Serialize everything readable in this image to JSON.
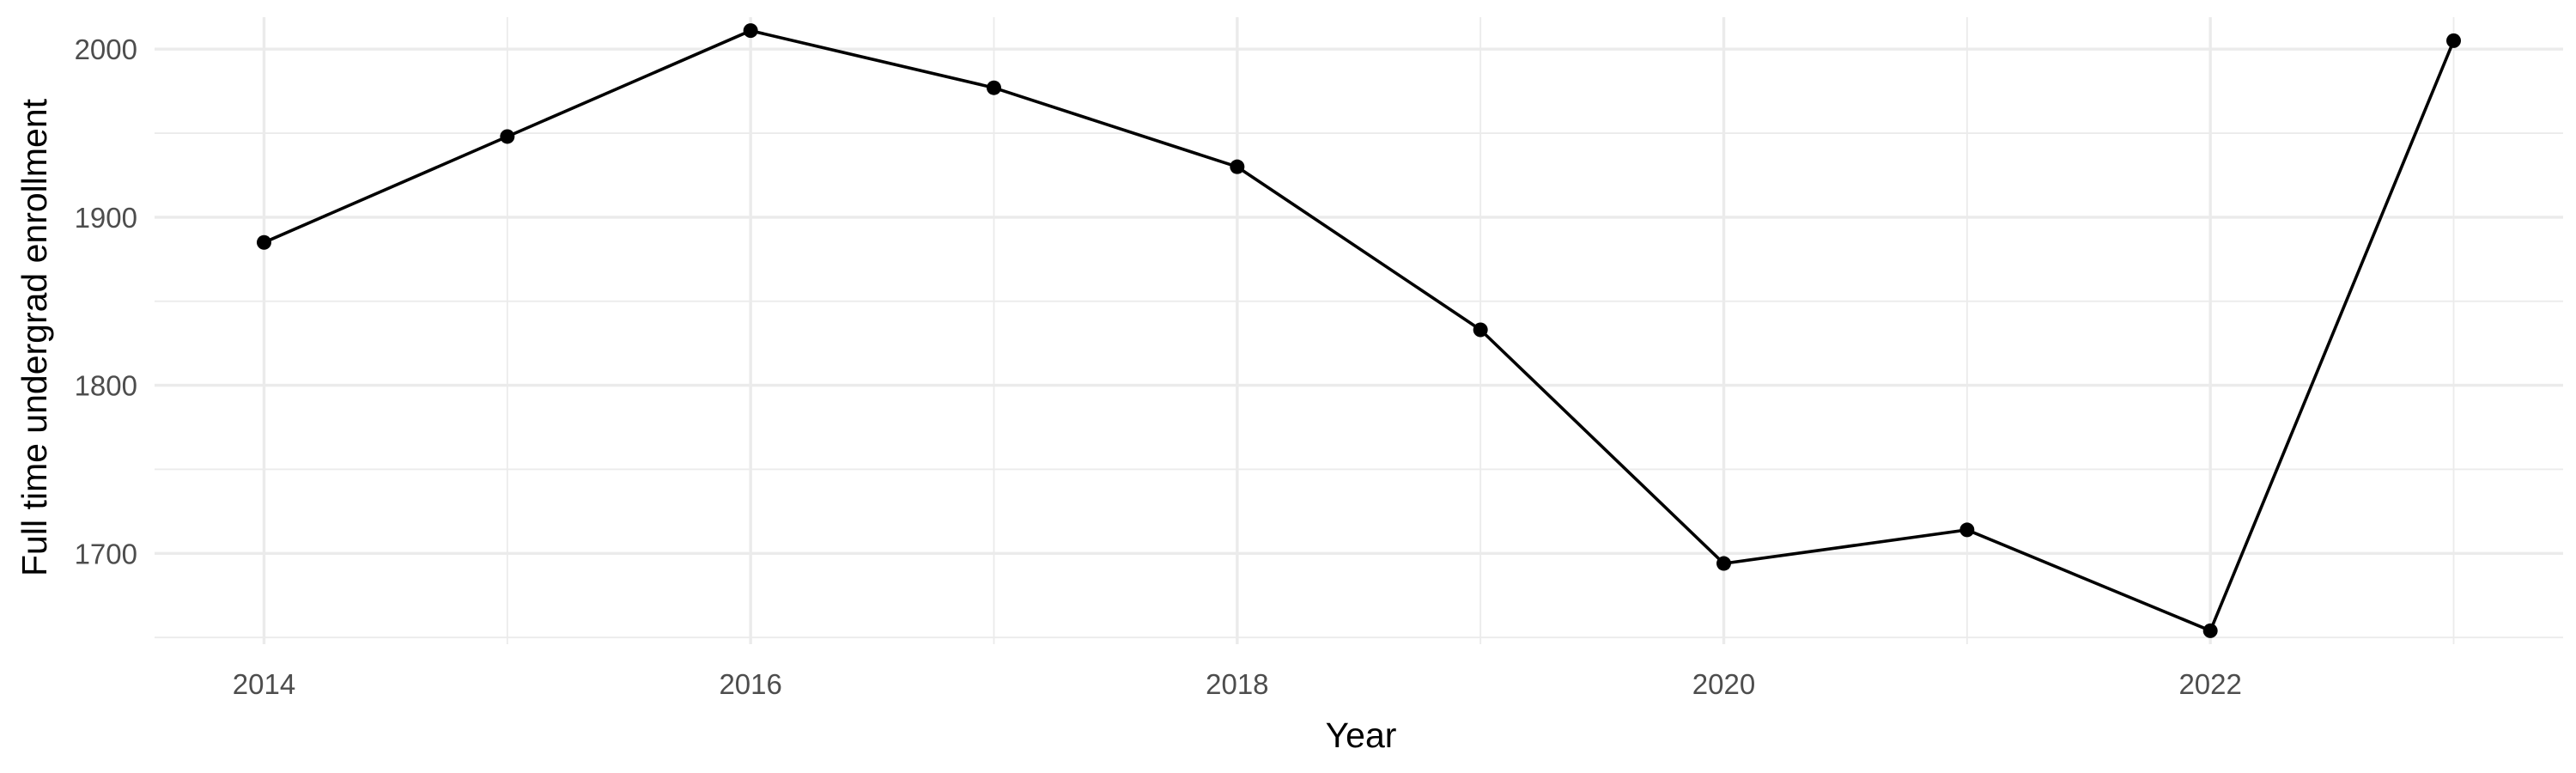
{
  "chart_data": {
    "type": "line",
    "title": "",
    "xlabel": "Year",
    "ylabel": "Full time undergrad enrollment",
    "x": [
      2014,
      2015,
      2016,
      2017,
      2018,
      2019,
      2020,
      2021,
      2022,
      2023
    ],
    "series": [
      {
        "values": [
          1885,
          1948,
          2011,
          1977,
          1930,
          1833,
          1694,
          1714,
          1654,
          2005
        ],
        "color": "#000000"
      }
    ],
    "x_ticks": [
      2014,
      2016,
      2018,
      2020,
      2022
    ],
    "y_ticks": [
      1700,
      1800,
      1900,
      2000
    ],
    "xlim": [
      2013.55,
      2023.45
    ],
    "ylim": [
      1646,
      2019
    ],
    "grid": true,
    "legend": "none"
  }
}
